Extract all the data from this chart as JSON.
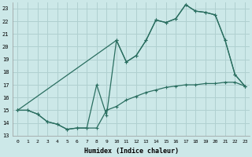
{
  "xlabel": "Humidex (Indice chaleur)",
  "xlim": [
    -0.5,
    23.5
  ],
  "ylim": [
    13,
    23.5
  ],
  "yticks": [
    13,
    14,
    15,
    16,
    17,
    18,
    19,
    20,
    21,
    22,
    23
  ],
  "xticks": [
    0,
    1,
    2,
    3,
    4,
    5,
    6,
    7,
    8,
    9,
    10,
    11,
    12,
    13,
    14,
    15,
    16,
    17,
    18,
    19,
    20,
    21,
    22,
    23
  ],
  "bg_color": "#cce8e8",
  "grid_color": "#b0d0d0",
  "line_color": "#2a6e60",
  "line1_x": [
    0,
    1,
    2,
    3,
    4,
    5,
    6,
    7,
    8,
    9,
    10,
    11,
    12,
    13,
    14,
    15,
    16,
    17,
    18,
    19,
    20,
    21,
    22,
    23
  ],
  "line1_y": [
    15.0,
    15.0,
    14.7,
    14.1,
    13.9,
    13.5,
    13.6,
    13.6,
    13.6,
    15.0,
    15.3,
    15.8,
    16.1,
    16.4,
    16.6,
    16.8,
    16.9,
    17.0,
    17.0,
    17.1,
    17.1,
    17.2,
    17.2,
    16.9
  ],
  "line2_x": [
    0,
    1,
    2,
    3,
    4,
    5,
    6,
    7,
    8,
    9,
    10,
    11,
    12,
    13,
    14,
    15,
    16,
    17,
    18,
    19,
    20,
    21,
    22,
    23
  ],
  "line2_y": [
    15.0,
    15.0,
    14.7,
    14.1,
    13.9,
    13.5,
    13.6,
    13.6,
    17.0,
    14.6,
    20.5,
    18.8,
    19.3,
    20.5,
    22.1,
    21.9,
    22.2,
    23.3,
    22.8,
    22.7,
    22.5,
    20.5,
    17.8,
    16.9
  ],
  "line3_x": [
    0,
    10,
    11,
    12,
    13,
    14,
    15,
    16,
    17,
    18,
    19,
    20,
    21,
    22,
    23
  ],
  "line3_y": [
    15.0,
    20.5,
    18.8,
    19.3,
    20.5,
    22.1,
    21.9,
    22.2,
    23.3,
    22.8,
    22.7,
    22.5,
    20.5,
    17.8,
    16.9
  ]
}
